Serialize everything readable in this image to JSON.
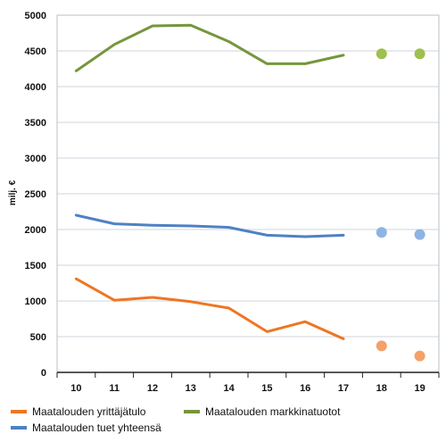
{
  "chart_data": {
    "type": "line",
    "ylabel": "milj. €",
    "categories": [
      "10",
      "11",
      "12",
      "13",
      "14",
      "15",
      "16",
      "17",
      "18",
      "19"
    ],
    "ylim": [
      0,
      5000
    ],
    "yticks": [
      "0",
      "500",
      "1000",
      "1500",
      "2000",
      "2500",
      "3000",
      "3500",
      "4000",
      "4500",
      "5000"
    ],
    "grid": "horizontal",
    "legend_position": "bottom",
    "series": [
      {
        "name": "Maatalouden yrittäjätulo",
        "color": "#ee7623",
        "line_values": [
          1310,
          1010,
          1050,
          990,
          900,
          570,
          710,
          470
        ],
        "forecast_values": [
          370,
          230
        ]
      },
      {
        "name": "Maatalouden markkinatuotot",
        "color": "#76963c",
        "line_values": [
          4220,
          4590,
          4850,
          4860,
          4630,
          4320,
          4320,
          4440
        ],
        "forecast_values": [
          4460,
          4460
        ]
      },
      {
        "name": "Maatalouden tuet yhteensä",
        "color": "#4f81c5",
        "line_values": [
          2200,
          2080,
          2060,
          2050,
          2030,
          1920,
          1900,
          1920
        ],
        "forecast_values": [
          1960,
          1930
        ]
      }
    ]
  },
  "forecast_marker_colors": [
    "#f4a16a",
    "#9ec04e",
    "#8fb3e3"
  ]
}
